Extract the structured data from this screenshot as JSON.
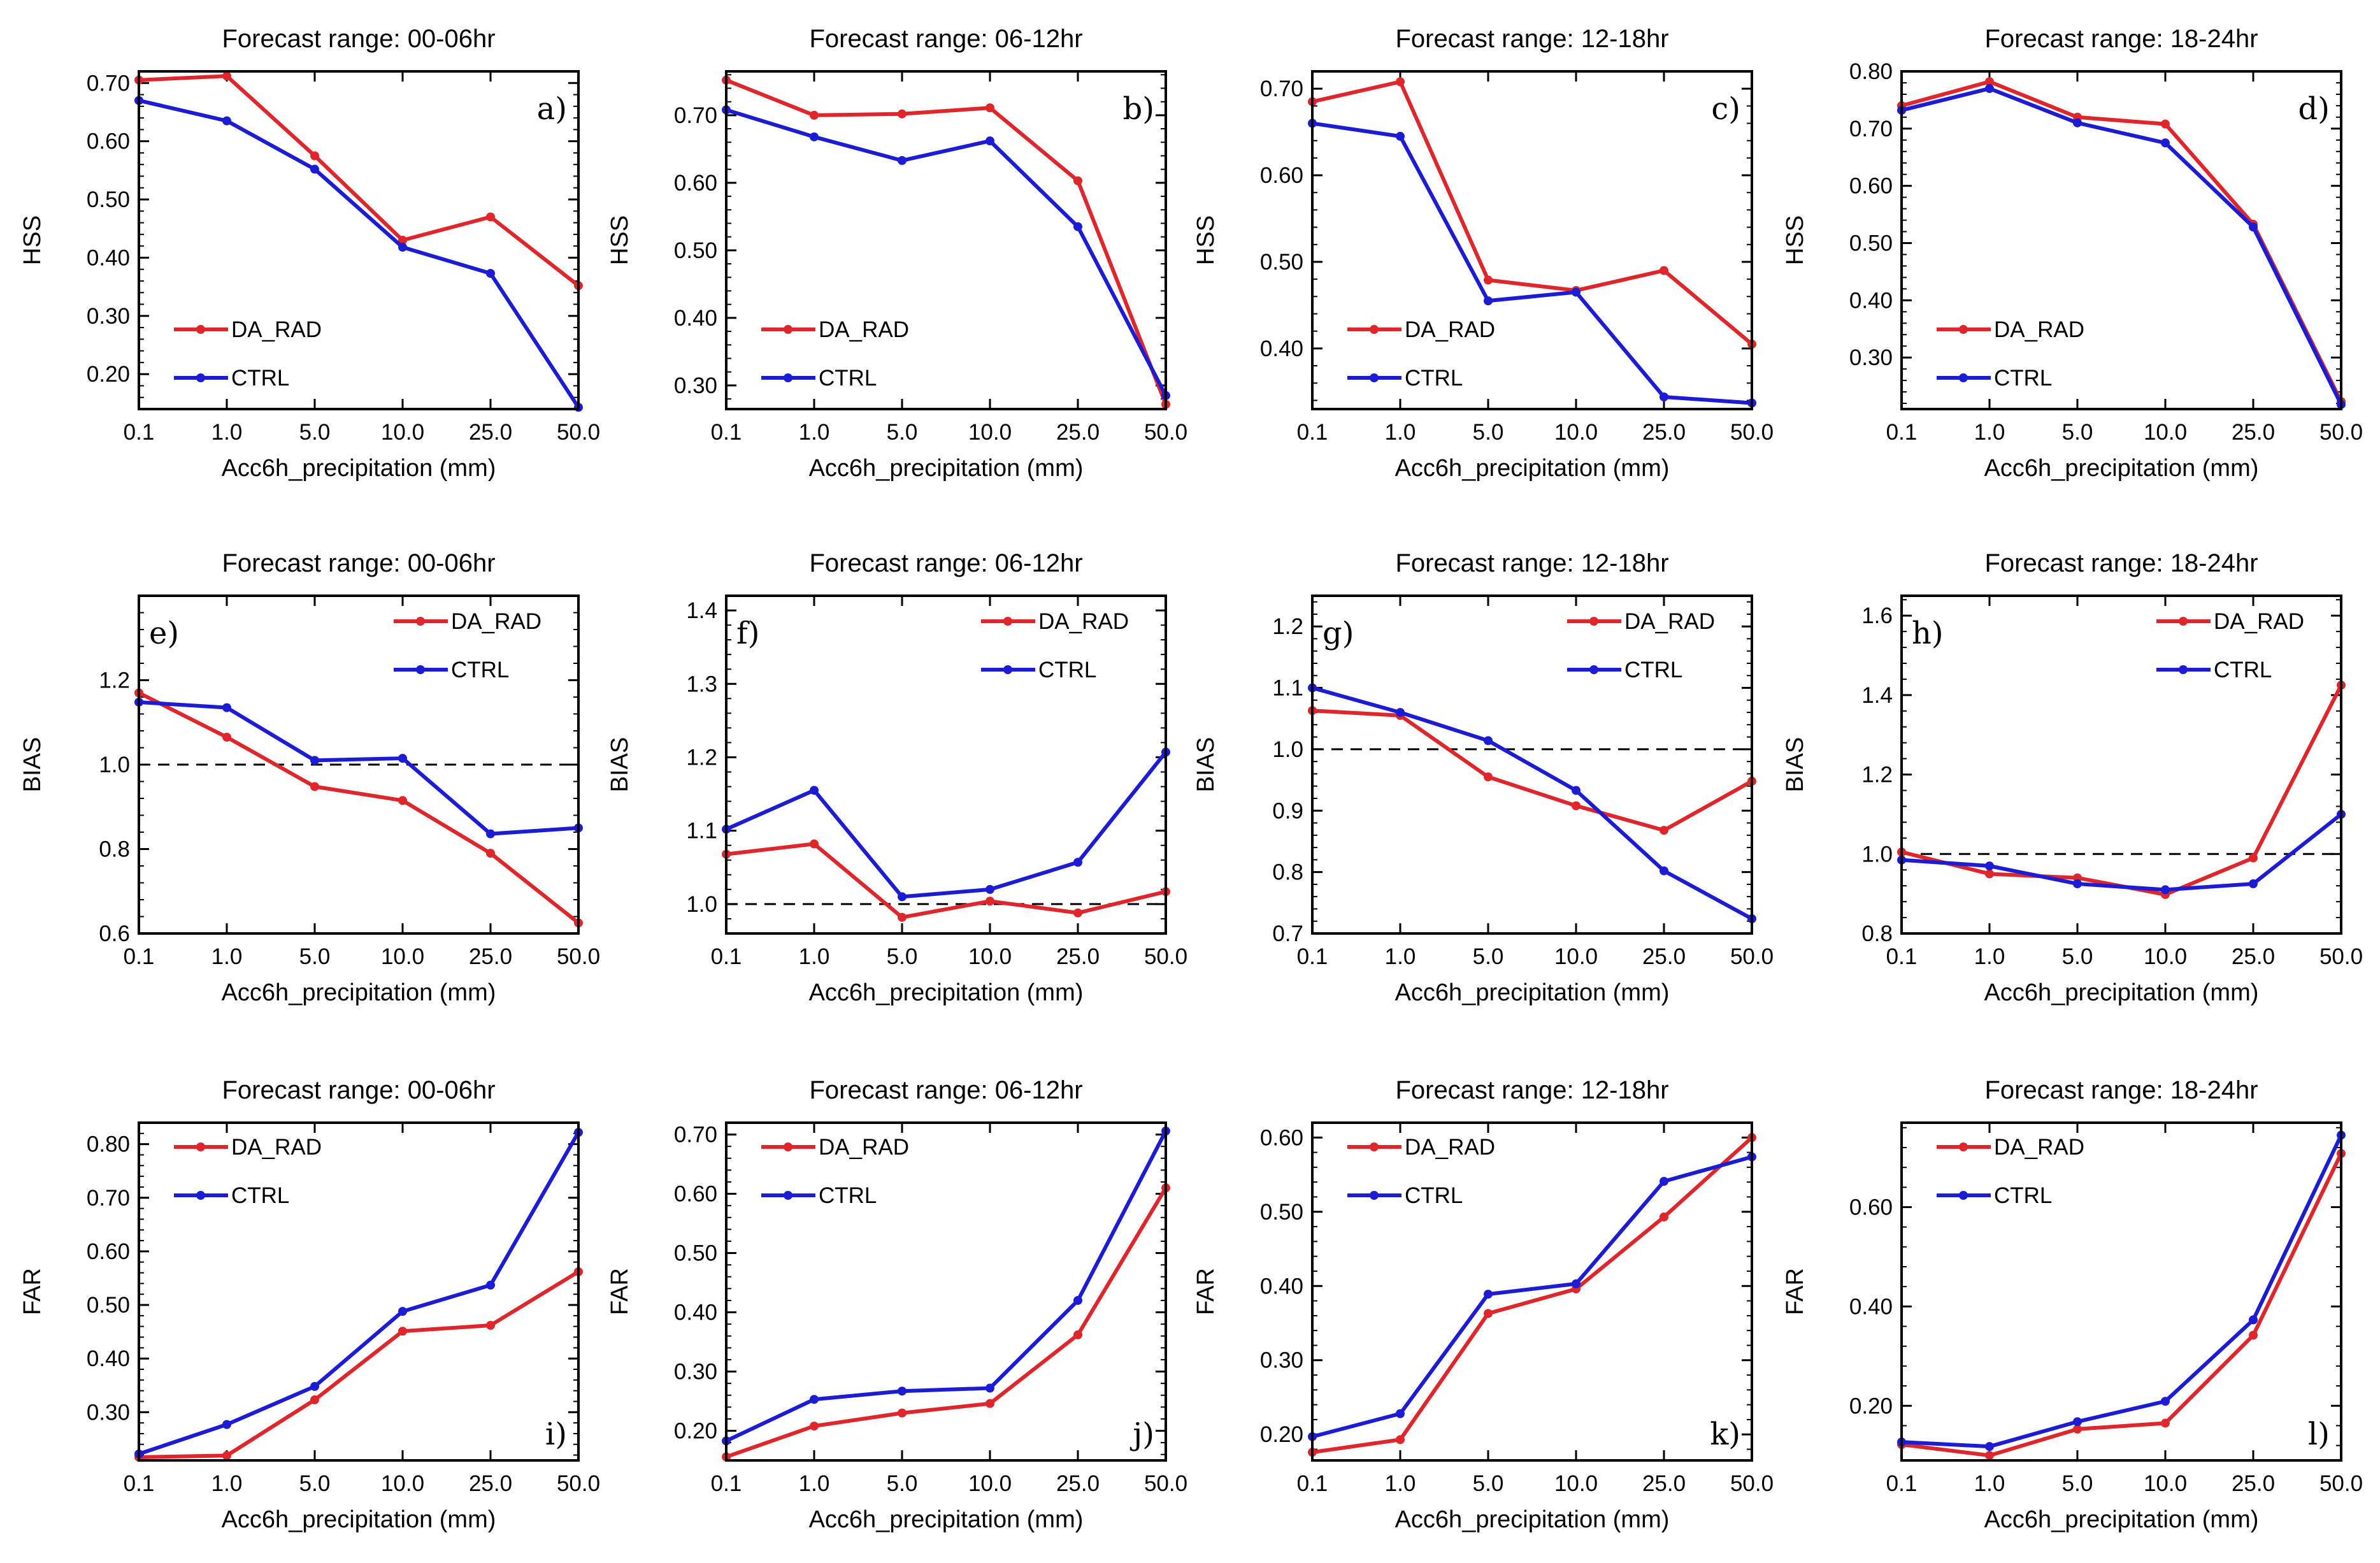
{
  "figure": {
    "description_free": true
  },
  "legend": {
    "series_names": [
      "DA_RAD",
      "CTRL"
    ]
  },
  "colors": {
    "DA_RAD": "#e0262b",
    "CTRL": "#1c1cd6",
    "axis": "#000000"
  },
  "chart_data": [
    {
      "id": "a",
      "panel_label": "a)",
      "type": "line",
      "title": "Forecast range: 00-06hr",
      "xlabel": "Acc6h_precipitation (mm)",
      "ylabel": "HSS",
      "categories": [
        "0.1",
        "1.0",
        "5.0",
        "10.0",
        "25.0",
        "50.0"
      ],
      "ylim": [
        0.14,
        0.72
      ],
      "yticks": [
        0.2,
        0.3,
        0.4,
        0.5,
        0.6,
        0.7
      ],
      "ytick_labels": [
        "0.20",
        "0.30",
        "0.40",
        "0.50",
        "0.60",
        "0.70"
      ],
      "series": [
        {
          "name": "DA_RAD",
          "values": [
            0.705,
            0.712,
            0.575,
            0.43,
            0.47,
            0.352
          ]
        },
        {
          "name": "CTRL",
          "values": [
            0.67,
            0.635,
            0.552,
            0.418,
            0.373,
            0.143
          ]
        }
      ],
      "legend_loc": "lower-left",
      "label_loc": "top-right",
      "refline": null
    },
    {
      "id": "b",
      "panel_label": "b)",
      "type": "line",
      "title": "Forecast range: 06-12hr",
      "xlabel": "Acc6h_precipitation (mm)",
      "ylabel": "HSS",
      "categories": [
        "0.1",
        "1.0",
        "5.0",
        "10.0",
        "25.0",
        "50.0"
      ],
      "ylim": [
        0.265,
        0.765
      ],
      "yticks": [
        0.3,
        0.4,
        0.5,
        0.6,
        0.7
      ],
      "ytick_labels": [
        "0.30",
        "0.40",
        "0.50",
        "0.60",
        "0.70"
      ],
      "series": [
        {
          "name": "DA_RAD",
          "values": [
            0.752,
            0.7,
            0.702,
            0.711,
            0.603,
            0.272
          ]
        },
        {
          "name": "CTRL",
          "values": [
            0.708,
            0.668,
            0.633,
            0.662,
            0.535,
            0.285
          ]
        }
      ],
      "legend_loc": "lower-left",
      "label_loc": "top-right",
      "refline": null
    },
    {
      "id": "c",
      "panel_label": "c)",
      "type": "line",
      "title": "Forecast range: 12-18hr",
      "xlabel": "Acc6h_precipitation (mm)",
      "ylabel": "HSS",
      "categories": [
        "0.1",
        "1.0",
        "5.0",
        "10.0",
        "25.0",
        "50.0"
      ],
      "ylim": [
        0.33,
        0.72
      ],
      "yticks": [
        0.4,
        0.5,
        0.6,
        0.7
      ],
      "ytick_labels": [
        "0.40",
        "0.50",
        "0.60",
        "0.70"
      ],
      "series": [
        {
          "name": "DA_RAD",
          "values": [
            0.685,
            0.708,
            0.479,
            0.467,
            0.49,
            0.405
          ]
        },
        {
          "name": "CTRL",
          "values": [
            0.66,
            0.645,
            0.455,
            0.465,
            0.344,
            0.337
          ]
        }
      ],
      "legend_loc": "lower-left",
      "label_loc": "top-right",
      "refline": null
    },
    {
      "id": "d",
      "panel_label": "d)",
      "type": "line",
      "title": "Forecast range: 18-24hr",
      "xlabel": "Acc6h_precipitation (mm)",
      "ylabel": "HSS",
      "categories": [
        "0.1",
        "1.0",
        "5.0",
        "10.0",
        "25.0",
        "50.0"
      ],
      "ylim": [
        0.21,
        0.8
      ],
      "yticks": [
        0.3,
        0.4,
        0.5,
        0.6,
        0.7,
        0.8
      ],
      "ytick_labels": [
        "0.30",
        "0.40",
        "0.50",
        "0.60",
        "0.70",
        "0.80"
      ],
      "series": [
        {
          "name": "DA_RAD",
          "values": [
            0.74,
            0.782,
            0.72,
            0.708,
            0.533,
            0.223
          ]
        },
        {
          "name": "CTRL",
          "values": [
            0.732,
            0.77,
            0.71,
            0.675,
            0.528,
            0.218
          ]
        }
      ],
      "legend_loc": "lower-left",
      "label_loc": "top-right",
      "refline": null
    },
    {
      "id": "e",
      "panel_label": "e)",
      "type": "line",
      "title": "Forecast range: 00-06hr",
      "xlabel": "Acc6h_precipitation (mm)",
      "ylabel": "BIAS",
      "categories": [
        "0.1",
        "1.0",
        "5.0",
        "10.0",
        "25.0",
        "50.0"
      ],
      "ylim": [
        0.6,
        1.4
      ],
      "yticks": [
        0.6,
        0.8,
        1.0,
        1.2
      ],
      "ytick_labels": [
        "0.6",
        "0.8",
        "1.0",
        "1.2"
      ],
      "series": [
        {
          "name": "DA_RAD",
          "values": [
            1.17,
            1.065,
            0.948,
            0.915,
            0.79,
            0.625
          ]
        },
        {
          "name": "CTRL",
          "values": [
            1.148,
            1.135,
            1.01,
            1.015,
            0.836,
            0.85
          ]
        }
      ],
      "legend_loc": "top-right",
      "label_loc": "top-left",
      "refline": 1.0
    },
    {
      "id": "f",
      "panel_label": "f)",
      "type": "line",
      "title": "Forecast range: 06-12hr",
      "xlabel": "Acc6h_precipitation (mm)",
      "ylabel": "BIAS",
      "categories": [
        "0.1",
        "1.0",
        "5.0",
        "10.0",
        "25.0",
        "50.0"
      ],
      "ylim": [
        0.96,
        1.42
      ],
      "yticks": [
        1.0,
        1.1,
        1.2,
        1.3,
        1.4
      ],
      "ytick_labels": [
        "1.0",
        "1.1",
        "1.2",
        "1.3",
        "1.4"
      ],
      "series": [
        {
          "name": "DA_RAD",
          "values": [
            1.068,
            1.082,
            0.982,
            1.004,
            0.988,
            1.017
          ]
        },
        {
          "name": "CTRL",
          "values": [
            1.102,
            1.155,
            1.01,
            1.02,
            1.057,
            1.207
          ]
        }
      ],
      "legend_loc": "top-right",
      "label_loc": "top-left",
      "refline": 1.0
    },
    {
      "id": "g",
      "panel_label": "g)",
      "type": "line",
      "title": "Forecast range: 12-18hr",
      "xlabel": "Acc6h_precipitation (mm)",
      "ylabel": "BIAS",
      "categories": [
        "0.1",
        "1.0",
        "5.0",
        "10.0",
        "25.0",
        "50.0"
      ],
      "ylim": [
        0.7,
        1.25
      ],
      "yticks": [
        0.7,
        0.8,
        0.9,
        1.0,
        1.1,
        1.2
      ],
      "ytick_labels": [
        "0.7",
        "0.8",
        "0.9",
        "1.0",
        "1.1",
        "1.2"
      ],
      "series": [
        {
          "name": "DA_RAD",
          "values": [
            1.063,
            1.055,
            0.955,
            0.908,
            0.868,
            0.948
          ]
        },
        {
          "name": "CTRL",
          "values": [
            1.1,
            1.06,
            1.014,
            0.933,
            0.802,
            0.724
          ]
        }
      ],
      "legend_loc": "top-right",
      "label_loc": "top-left",
      "refline": 1.0
    },
    {
      "id": "h",
      "panel_label": "h)",
      "type": "line",
      "title": "Forecast range: 18-24hr",
      "xlabel": "Acc6h_precipitation (mm)",
      "ylabel": "BIAS",
      "categories": [
        "0.1",
        "1.0",
        "5.0",
        "10.0",
        "25.0",
        "50.0"
      ],
      "ylim": [
        0.8,
        1.65
      ],
      "yticks": [
        0.8,
        1.0,
        1.2,
        1.4,
        1.6
      ],
      "ytick_labels": [
        "0.8",
        "1.0",
        "1.2",
        "1.4",
        "1.6"
      ],
      "series": [
        {
          "name": "DA_RAD",
          "values": [
            1.005,
            0.95,
            0.94,
            0.898,
            0.99,
            1.425
          ]
        },
        {
          "name": "CTRL",
          "values": [
            0.985,
            0.97,
            0.925,
            0.91,
            0.925,
            1.1
          ]
        }
      ],
      "legend_loc": "top-right",
      "label_loc": "top-left",
      "refline": 1.0
    },
    {
      "id": "i",
      "panel_label": "i)",
      "type": "line",
      "title": "Forecast range: 00-06hr",
      "xlabel": "Acc6h_precipitation (mm)",
      "ylabel": "FAR",
      "categories": [
        "0.1",
        "1.0",
        "5.0",
        "10.0",
        "25.0",
        "50.0"
      ],
      "ylim": [
        0.21,
        0.84
      ],
      "yticks": [
        0.3,
        0.4,
        0.5,
        0.6,
        0.7,
        0.8
      ],
      "ytick_labels": [
        "0.30",
        "0.40",
        "0.50",
        "0.60",
        "0.70",
        "0.80"
      ],
      "series": [
        {
          "name": "DA_RAD",
          "values": [
            0.216,
            0.219,
            0.323,
            0.451,
            0.462,
            0.562
          ]
        },
        {
          "name": "CTRL",
          "values": [
            0.222,
            0.277,
            0.348,
            0.488,
            0.537,
            0.822
          ]
        }
      ],
      "legend_loc": "top-left",
      "label_loc": "bottom-right",
      "refline": null
    },
    {
      "id": "j",
      "panel_label": "j)",
      "type": "line",
      "title": "Forecast range: 06-12hr",
      "xlabel": "Acc6h_precipitation (mm)",
      "ylabel": "FAR",
      "categories": [
        "0.1",
        "1.0",
        "5.0",
        "10.0",
        "25.0",
        "50.0"
      ],
      "ylim": [
        0.15,
        0.72
      ],
      "yticks": [
        0.2,
        0.3,
        0.4,
        0.5,
        0.6,
        0.7
      ],
      "ytick_labels": [
        "0.20",
        "0.30",
        "0.40",
        "0.50",
        "0.60",
        "0.70"
      ],
      "series": [
        {
          "name": "DA_RAD",
          "values": [
            0.156,
            0.208,
            0.23,
            0.246,
            0.362,
            0.61
          ]
        },
        {
          "name": "CTRL",
          "values": [
            0.183,
            0.253,
            0.267,
            0.272,
            0.42,
            0.706
          ]
        }
      ],
      "legend_loc": "top-left",
      "label_loc": "bottom-right",
      "refline": null
    },
    {
      "id": "k",
      "panel_label": "k)",
      "type": "line",
      "title": "Forecast range: 12-18hr",
      "xlabel": "Acc6h_precipitation (mm)",
      "ylabel": "FAR",
      "categories": [
        "0.1",
        "1.0",
        "5.0",
        "10.0",
        "25.0",
        "50.0"
      ],
      "ylim": [
        0.165,
        0.62
      ],
      "yticks": [
        0.2,
        0.3,
        0.4,
        0.5,
        0.6
      ],
      "ytick_labels": [
        "0.20",
        "0.30",
        "0.40",
        "0.50",
        "0.60"
      ],
      "series": [
        {
          "name": "DA_RAD",
          "values": [
            0.176,
            0.193,
            0.363,
            0.396,
            0.493,
            0.6
          ]
        },
        {
          "name": "CTRL",
          "values": [
            0.197,
            0.228,
            0.389,
            0.403,
            0.541,
            0.574
          ]
        }
      ],
      "legend_loc": "top-left",
      "label_loc": "bottom-right",
      "refline": null
    },
    {
      "id": "l",
      "panel_label": "l)",
      "type": "line",
      "title": "Forecast range: 18-24hr",
      "xlabel": "Acc6h_precipitation (mm)",
      "ylabel": "FAR",
      "categories": [
        "0.1",
        "1.0",
        "5.0",
        "10.0",
        "25.0",
        "50.0"
      ],
      "ylim": [
        0.09,
        0.77
      ],
      "yticks": [
        0.2,
        0.4,
        0.6
      ],
      "ytick_labels": [
        "0.20",
        "0.40",
        "0.60"
      ],
      "series": [
        {
          "name": "DA_RAD",
          "values": [
            0.122,
            0.1,
            0.153,
            0.165,
            0.342,
            0.708
          ]
        },
        {
          "name": "CTRL",
          "values": [
            0.127,
            0.118,
            0.168,
            0.209,
            0.373,
            0.745
          ]
        }
      ],
      "legend_loc": "top-left",
      "label_loc": "bottom-right",
      "refline": null
    }
  ]
}
